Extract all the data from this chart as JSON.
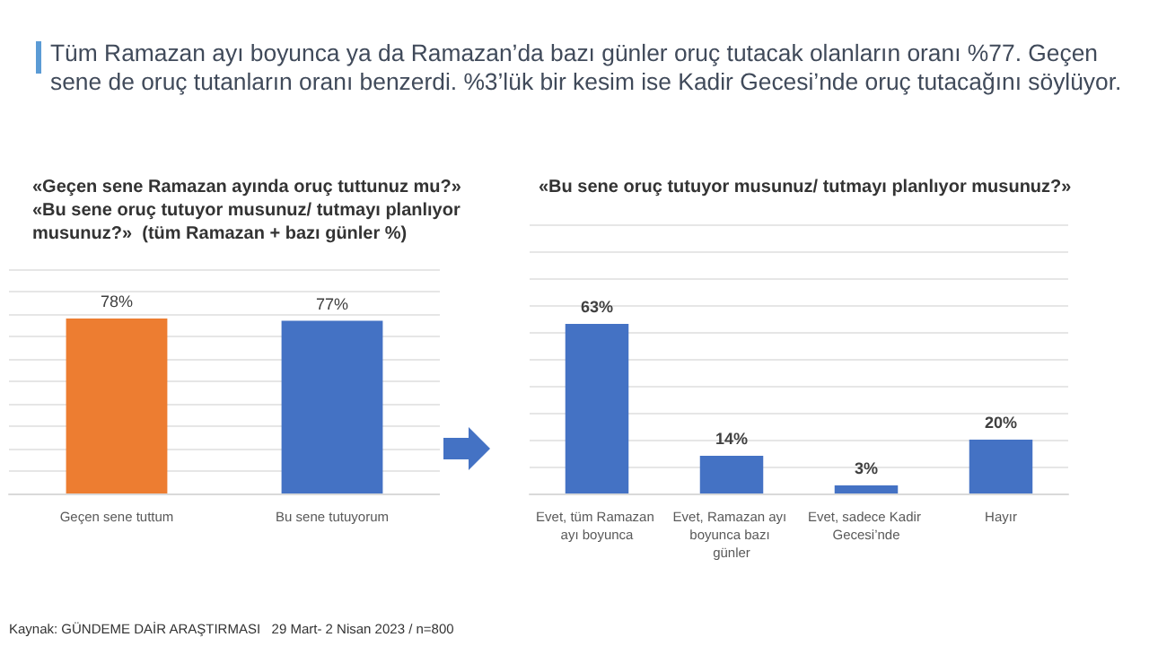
{
  "chart_data": [
    {
      "type": "bar",
      "title": "Tüm Ramazan ayı boyunca ya da Ramazan’da bazı günler oruç tutacak olanların oranı %77. Geçen sene de oruç tutanların oranı benzerdi. %3’lük bir kesim ise Kadir Gecesi’nde oruç tutacağını söylüyor.",
      "subtitle": "«Geçen sene Ramazan ayında oruç tuttunuz mu?»\n«Bu sene oruç tutuyor musunuz/ tutmayı planlıyor musunuz?»  (tüm Ramazan + bazı günler %)",
      "categories": [
        "Geçen sene tuttum",
        "Bu sene tutuyorum"
      ],
      "values": [
        78,
        77
      ],
      "colors": [
        "#ed7d31",
        "#4472c4"
      ],
      "value_labels": [
        "78%",
        "77%"
      ],
      "ylim": [
        0,
        100
      ],
      "yticks": [
        {
          "value": 0,
          "label": null
        },
        {
          "value": 10,
          "label": null
        },
        {
          "value": 20,
          "label": null
        },
        {
          "value": 30,
          "label": null
        },
        {
          "value": 40,
          "label": null
        },
        {
          "value": 50,
          "label": null
        },
        {
          "value": 60,
          "label": null
        },
        {
          "value": 70,
          "label": null
        },
        {
          "value": 80,
          "label": null
        },
        {
          "value": 90,
          "label": null
        },
        {
          "value": 100,
          "label": null
        }
      ],
      "grid": "y",
      "tick_labels": "x"
    },
    {
      "type": "bar",
      "title": "«Bu sene oruç tutuyor musunuz/ tutmayı planlıyor musunuz?»",
      "categories": [
        "Evet, tüm Ramazan ayı boyunca",
        "Evet, Ramazan ayı boyunca bazı günler",
        "Evet, sadece Kadir Gecesi’nde",
        "Hayır"
      ],
      "values": [
        63,
        14,
        3,
        20
      ],
      "color": "#4472c4",
      "value_labels": [
        "63%",
        "14%",
        "3%",
        "20%"
      ],
      "ylim": [
        0,
        100
      ],
      "yticks": [
        {
          "value": 0,
          "label": null
        },
        {
          "value": 10,
          "label": null
        },
        {
          "value": 20,
          "label": null
        },
        {
          "value": 30,
          "label": null
        },
        {
          "value": 40,
          "label": null
        },
        {
          "value": 50,
          "label": null
        },
        {
          "value": 60,
          "label": null
        },
        {
          "value": 70,
          "label": null
        },
        {
          "value": 80,
          "label": null
        },
        {
          "value": 90,
          "label": null
        },
        {
          "value": 100,
          "label": null
        }
      ],
      "grid": "y",
      "tick_labels": "x",
      "annotations": [
        "Kaynak: GÜNDEME DAİR ARAŞTIRMASI   29 Mart- 2 Nisan 2023 / n=800"
      ]
    }
  ]
}
